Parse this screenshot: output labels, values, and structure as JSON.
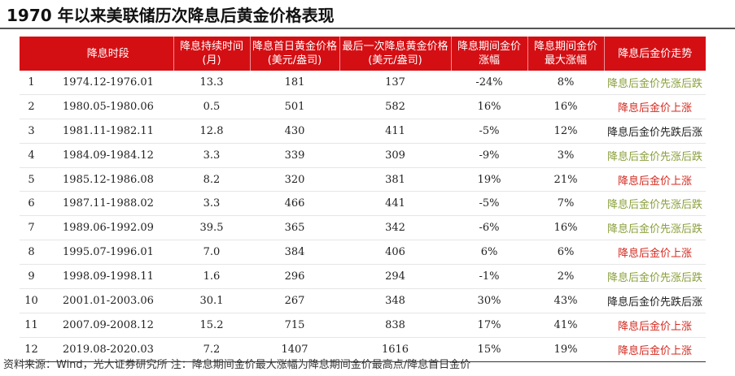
{
  "title": "1970 年以来美联储历次降息后黄金价格表现",
  "headers": [
    "",
    "降息时段",
    "降息持续时间(月)",
    "降息首日黄金价格(美元/盎司)",
    "最后一次降息黄金价格(美元/盎司)",
    "降息期间金价涨幅",
    "降息期间金价最大涨幅",
    "降息后金价走势"
  ],
  "rows": [
    {
      "no": "1",
      "period": "1974.12-1976.01",
      "months": "13.3",
      "first_price": "181",
      "last_price": "137",
      "change": "-24%",
      "max_change": "8%",
      "trend": "降息后金价先涨后跌",
      "color": "#8aa03c"
    },
    {
      "no": "2",
      "period": "1980.05-1980.06",
      "months": "0.5",
      "first_price": "501",
      "last_price": "582",
      "change": "16%",
      "max_change": "16%",
      "trend": "降息后金价上涨",
      "color": "#d42a20"
    },
    {
      "no": "3",
      "period": "1981.11-1982.11",
      "months": "12.8",
      "first_price": "430",
      "last_price": "411",
      "change": "-5%",
      "max_change": "12%",
      "trend": "降息后金价先跌后涨",
      "color": "#222222"
    },
    {
      "no": "4",
      "period": "1984.09-1984.12",
      "months": "3.3",
      "first_price": "339",
      "last_price": "309",
      "change": "-9%",
      "max_change": "3%",
      "trend": "降息后金价先涨后跌",
      "color": "#8aa03c"
    },
    {
      "no": "5",
      "period": "1985.12-1986.08",
      "months": "8.2",
      "first_price": "320",
      "last_price": "381",
      "change": "19%",
      "max_change": "21%",
      "trend": "降息后金价上涨",
      "color": "#d42a20"
    },
    {
      "no": "6",
      "period": "1987.11-1988.02",
      "months": "3.3",
      "first_price": "466",
      "last_price": "441",
      "change": "-5%",
      "max_change": "7%",
      "trend": "降息后金价先涨后跌",
      "color": "#8aa03c"
    },
    {
      "no": "7",
      "period": "1989.06-1992.09",
      "months": "39.5",
      "first_price": "365",
      "last_price": "342",
      "change": "-6%",
      "max_change": "16%",
      "trend": "降息后金价先涨后跌",
      "color": "#8aa03c"
    },
    {
      "no": "8",
      "period": "1995.07-1996.01",
      "months": "7.0",
      "first_price": "384",
      "last_price": "406",
      "change": "6%",
      "max_change": "6%",
      "trend": "降息后金价上涨",
      "color": "#d42a20"
    },
    {
      "no": "9",
      "period": "1998.09-1998.11",
      "months": "1.6",
      "first_price": "296",
      "last_price": "294",
      "change": "-1%",
      "max_change": "2%",
      "trend": "降息后金价先涨后跌",
      "color": "#8aa03c"
    },
    {
      "no": "10",
      "period": "2001.01-2003.06",
      "months": "30.1",
      "first_price": "267",
      "last_price": "348",
      "change": "30%",
      "max_change": "43%",
      "trend": "降息后金价先跌后涨",
      "color": "#222222"
    },
    {
      "no": "11",
      "period": "2007.09-2008.12",
      "months": "15.2",
      "first_price": "715",
      "last_price": "838",
      "change": "17%",
      "max_change": "41%",
      "trend": "降息后金价上涨",
      "color": "#d42a20"
    },
    {
      "no": "12",
      "period": "2019.08-2020.03",
      "months": "7.2",
      "first_price": "1407",
      "last_price": "1616",
      "change": "15%",
      "max_change": "19%",
      "trend": "降息后金价上涨",
      "color": "#d42a20"
    }
  ],
  "source": "资料来源：Wind，光大证券研究所   注：降息期间金价最大涨幅为降息期间金价最高点/降息首日金价"
}
